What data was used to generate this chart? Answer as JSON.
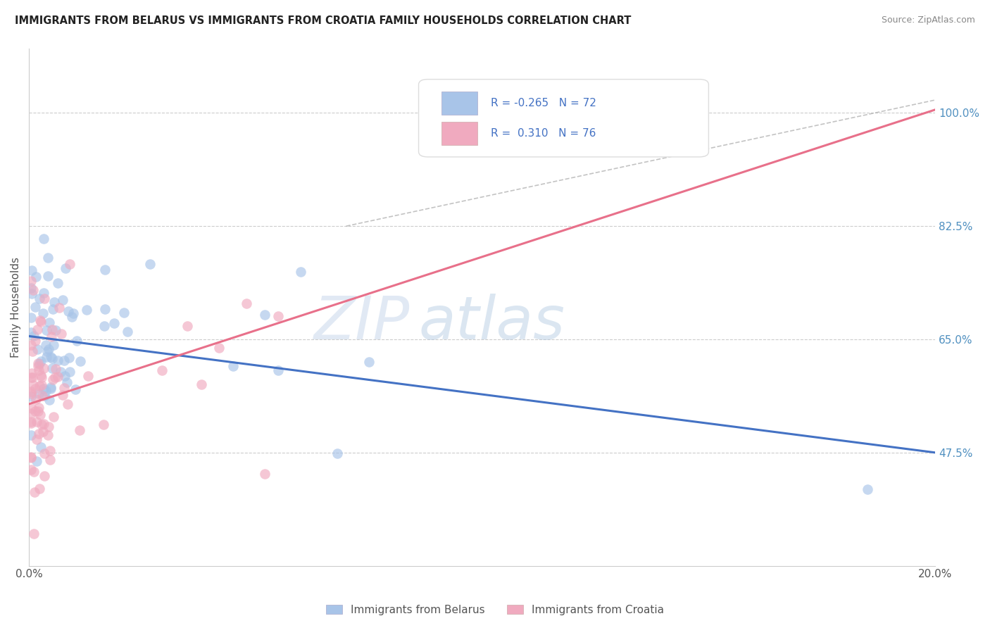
{
  "title": "IMMIGRANTS FROM BELARUS VS IMMIGRANTS FROM CROATIA FAMILY HOUSEHOLDS CORRELATION CHART",
  "source": "Source: ZipAtlas.com",
  "ylabel": "Family Households",
  "right_yticks": [
    47.5,
    65.0,
    82.5,
    100.0
  ],
  "right_ytick_labels": [
    "47.5%",
    "65.0%",
    "82.5%",
    "100.0%"
  ],
  "xlim": [
    0.0,
    20.0
  ],
  "ylim": [
    30.0,
    110.0
  ],
  "legend_R_belarus": "-0.265",
  "legend_N_belarus": "72",
  "legend_R_croatia": "0.310",
  "legend_N_croatia": "76",
  "belarus_color": "#A8C4E8",
  "croatia_color": "#F0AABF",
  "belarus_line_color": "#4472C4",
  "croatia_line_color": "#E8708A",
  "watermark_zip": "ZIP",
  "watermark_atlas": "atlas",
  "background_color": "#ffffff",
  "belarus_line_x0": 0.0,
  "belarus_line_y0": 65.5,
  "belarus_line_x1": 20.0,
  "belarus_line_y1": 47.5,
  "croatia_line_x0": 0.0,
  "croatia_line_y0": 55.0,
  "croatia_line_x1": 20.0,
  "croatia_line_y1": 100.5,
  "dash_line_x0": 7.0,
  "dash_line_y0": 82.5,
  "dash_line_x1": 20.0,
  "dash_line_y1": 102.0
}
